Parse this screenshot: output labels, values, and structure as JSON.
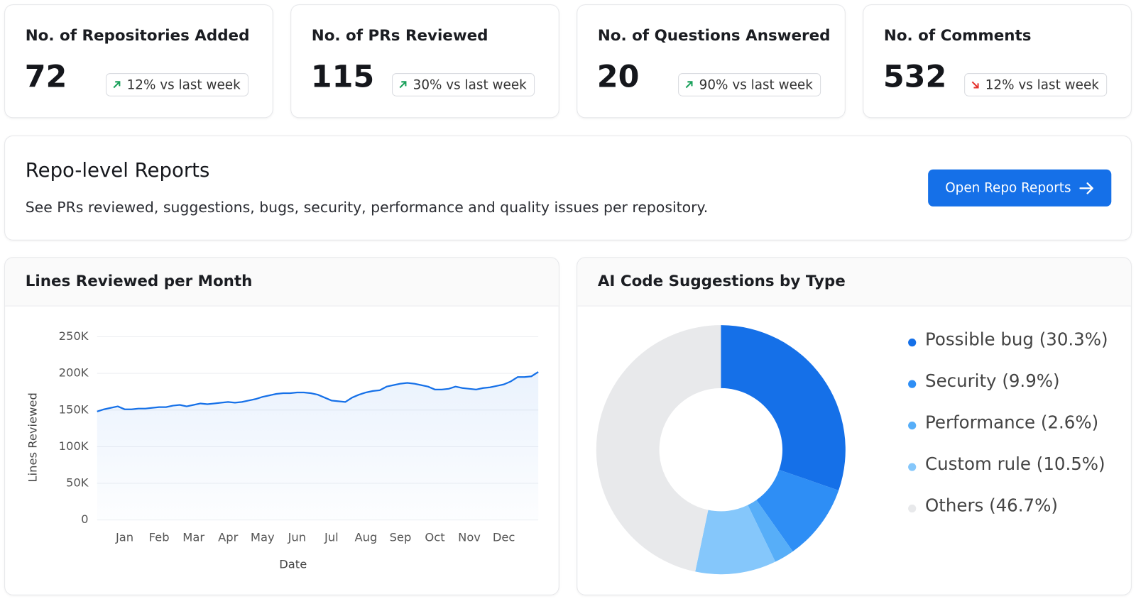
{
  "stats": [
    {
      "title": "No. of Repositories Added",
      "value": 72,
      "change": "12% vs last week",
      "trend": "up"
    },
    {
      "title": "No. of PRs Reviewed",
      "value": 115,
      "change": "30% vs last week",
      "trend": "up"
    },
    {
      "title": "No. of Questions Answered",
      "value": 20,
      "change": "90% vs last week",
      "trend": "up"
    },
    {
      "title": "No. of Comments",
      "value": 532,
      "change": "12% vs last week",
      "trend": "down"
    }
  ],
  "banner": {
    "title": "Repo-level Reports",
    "description": "See PRs reviewed, suggestions, bugs, security, performance and quality issues per repository.",
    "button": "Open Repo Reports"
  },
  "chart_data": [
    {
      "type": "line",
      "title": "Lines Reviewed per Month",
      "x_label": "Date",
      "y_label": "Lines Reviewed",
      "color": "#1570e8",
      "grid": true,
      "categories": [
        null,
        null,
        null,
        null,
        "Jan",
        null,
        null,
        null,
        null,
        "Feb",
        null,
        null,
        null,
        null,
        "Mar",
        null,
        null,
        null,
        null,
        "Apr",
        null,
        null,
        null,
        null,
        "May",
        null,
        null,
        null,
        null,
        "Jun",
        null,
        null,
        null,
        null,
        "Jul",
        null,
        null,
        null,
        null,
        "Aug",
        null,
        null,
        null,
        null,
        "Sep",
        null,
        null,
        null,
        null,
        "Oct",
        null,
        null,
        null,
        null,
        "Nov",
        null,
        null,
        null,
        null,
        "Dec",
        null,
        null,
        null,
        null,
        null
      ],
      "series": [
        {
          "name": "Lines Reviewed",
          "color": "#1570e8",
          "values": [
            148000,
            151000,
            153000,
            155000,
            151000,
            151000,
            152000,
            152000,
            153000,
            154000,
            154000,
            156000,
            157000,
            155000,
            157000,
            159000,
            158000,
            159000,
            160000,
            161000,
            160000,
            161000,
            163000,
            165000,
            168000,
            170000,
            172000,
            173000,
            173000,
            174000,
            174000,
            173000,
            171000,
            167000,
            163000,
            162000,
            161000,
            167000,
            171000,
            174000,
            176000,
            177000,
            182000,
            184000,
            186000,
            187000,
            186000,
            184000,
            182000,
            178000,
            178000,
            179000,
            182000,
            180000,
            179000,
            178000,
            180000,
            181000,
            183000,
            185000,
            189000,
            195000,
            195000,
            196000,
            202000
          ]
        }
      ],
      "ylim": [
        0,
        250000
      ],
      "yticks": [
        0,
        {
          "value": 50000,
          "label": "50K"
        },
        {
          "value": 100000,
          "label": "100K"
        },
        {
          "value": 150000,
          "label": "150K"
        },
        {
          "value": 200000,
          "label": "200K"
        },
        {
          "value": 250000,
          "label": "250K"
        }
      ]
    },
    {
      "type": "pie",
      "title": "AI Code Suggestions by Type",
      "legend": "right",
      "categories": [
        "Possible bug",
        "Security",
        "Performance",
        "Custom rule",
        "Others"
      ],
      "values": [
        30.3,
        9.9,
        2.6,
        10.5,
        46.7
      ],
      "value_labels": [
        "(30.3%)",
        "(9.9%)",
        "(2.6%)",
        "(10.5%)",
        "(46.7%)"
      ],
      "colors": [
        "#1570e8",
        "#2e8ef5",
        "#57aef8",
        "#85c7fb",
        "#e8e9eb"
      ]
    }
  ]
}
